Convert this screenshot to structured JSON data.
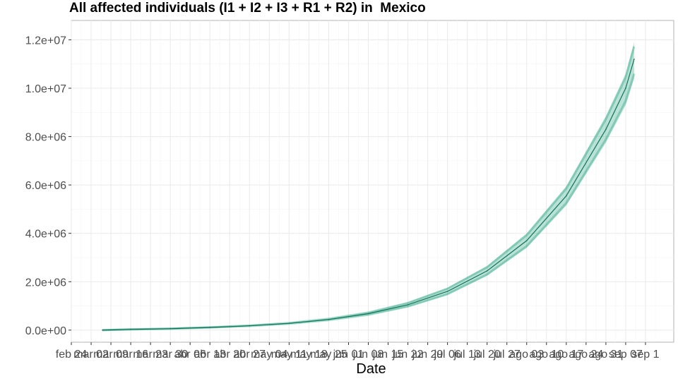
{
  "chart_data": {
    "type": "line",
    "title": "All affected individuals (I1 + I2 + I3 + R1 + R2) in  Mexico",
    "xlabel": "Date",
    "ylabel": "",
    "ylim": [
      -500000,
      12800000
    ],
    "y_ticks": [
      0,
      2000000,
      4000000,
      6000000,
      8000000,
      10000000,
      12000000
    ],
    "y_tick_labels": [
      "0.0e+00",
      "2.0e+06",
      "4.0e+06",
      "6.0e+06",
      "8.0e+06",
      "1.0e+07",
      "1.2e+07"
    ],
    "x_tick_labels": [
      "feb",
      "24",
      "mar",
      "02",
      "mar",
      "09",
      "mar",
      "16",
      "mar",
      "23",
      "mar",
      "30",
      "abr",
      "06",
      "abr",
      "13",
      "abr",
      "20",
      "abr",
      "27",
      "may",
      "04",
      "may",
      "11",
      "may",
      "18",
      "may",
      "25",
      "jun",
      "01",
      "jun",
      "08",
      "jun",
      "15",
      "jun",
      "22",
      "jun",
      "29",
      "jul",
      "06",
      "jul",
      "13",
      "jul",
      "20",
      "jul",
      "27",
      "ago",
      "03",
      "ago",
      "10",
      "ago",
      "17",
      "ago",
      "24",
      "ago",
      "31",
      "sep",
      "07",
      "sep",
      "1"
    ],
    "grid": true,
    "series": [
      {
        "color": "#1b9e77",
        "x": [
          "2020-02-28",
          "2020-03-09",
          "2020-03-23",
          "2020-04-06",
          "2020-04-20",
          "2020-05-04",
          "2020-05-18",
          "2020-06-01",
          "2020-06-15",
          "2020-06-29",
          "2020-07-13",
          "2020-07-27",
          "2020-08-10",
          "2020-08-24",
          "2020-08-31",
          "2020-09-03"
        ],
        "y": [
          0,
          30000,
          60000,
          110000,
          180000,
          280000,
          440000,
          680000,
          1050000,
          1600000,
          2450000,
          3700000,
          5550000,
          8300000,
          10000000,
          11200000
        ],
        "y_lower": [
          0,
          28000,
          56000,
          100000,
          165000,
          255000,
          400000,
          615000,
          950000,
          1450000,
          2250000,
          3400000,
          5150000,
          7750000,
          9300000,
          10400000
        ],
        "y_upper": [
          0,
          32000,
          64000,
          120000,
          195000,
          305000,
          480000,
          745000,
          1150000,
          1750000,
          2650000,
          4000000,
          5950000,
          8850000,
          10600000,
          11900000
        ]
      }
    ]
  }
}
